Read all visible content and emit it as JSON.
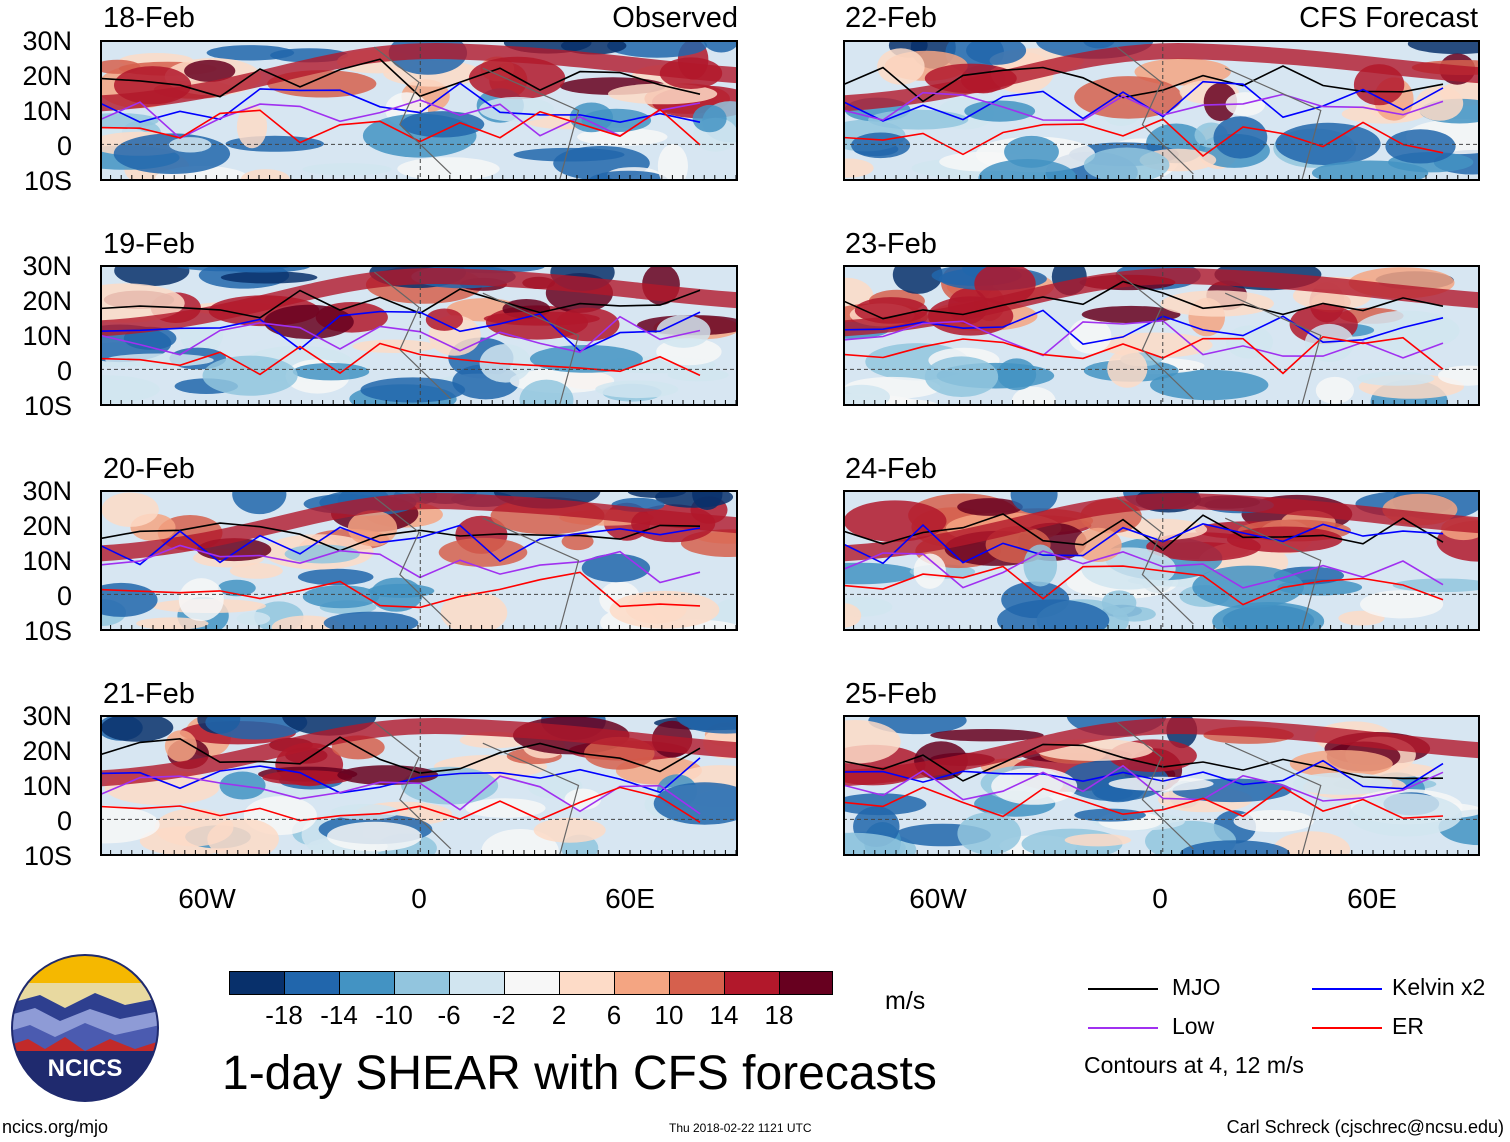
{
  "panels": [
    {
      "date": "18-Feb",
      "title": "Observed"
    },
    {
      "date": "19-Feb"
    },
    {
      "date": "20-Feb"
    },
    {
      "date": "21-Feb"
    },
    {
      "date": "22-Feb",
      "title": "CFS Forecast"
    },
    {
      "date": "23-Feb"
    },
    {
      "date": "24-Feb"
    },
    {
      "date": "25-Feb"
    }
  ],
  "lat_labels": [
    "30N",
    "20N",
    "10N",
    "0",
    "10S"
  ],
  "lon_labels": [
    "60W",
    "0",
    "60E"
  ],
  "colorbar": {
    "colors": [
      "#08306b",
      "#2166ac",
      "#4393c3",
      "#92c5de",
      "#d1e5f0",
      "#f7f7f7",
      "#fddbc7",
      "#f4a582",
      "#d6604d",
      "#b2182b",
      "#67001f"
    ],
    "ticks": [
      "-18",
      "-14",
      "-10",
      "-6",
      "-2",
      "2",
      "6",
      "10",
      "14",
      "18"
    ],
    "units": "m/s"
  },
  "legend": {
    "items": [
      {
        "label": "MJO",
        "color": "#000000"
      },
      {
        "label": "Kelvin x2",
        "color": "#0000ff"
      },
      {
        "label": "Low",
        "color": "#a030f0"
      },
      {
        "label": "ER",
        "color": "#ff0000"
      }
    ],
    "contours_note": "Contours at 4, 12 m/s"
  },
  "main_title": "1-day SHEAR with CFS forecasts",
  "logo_text": "NCICS",
  "footer": {
    "left": "ncics.org/mjo",
    "center": "Thu 2018-02-22 1121 UTC",
    "right": "Carl Schreck (cjschrec@ncsu.edu)"
  }
}
